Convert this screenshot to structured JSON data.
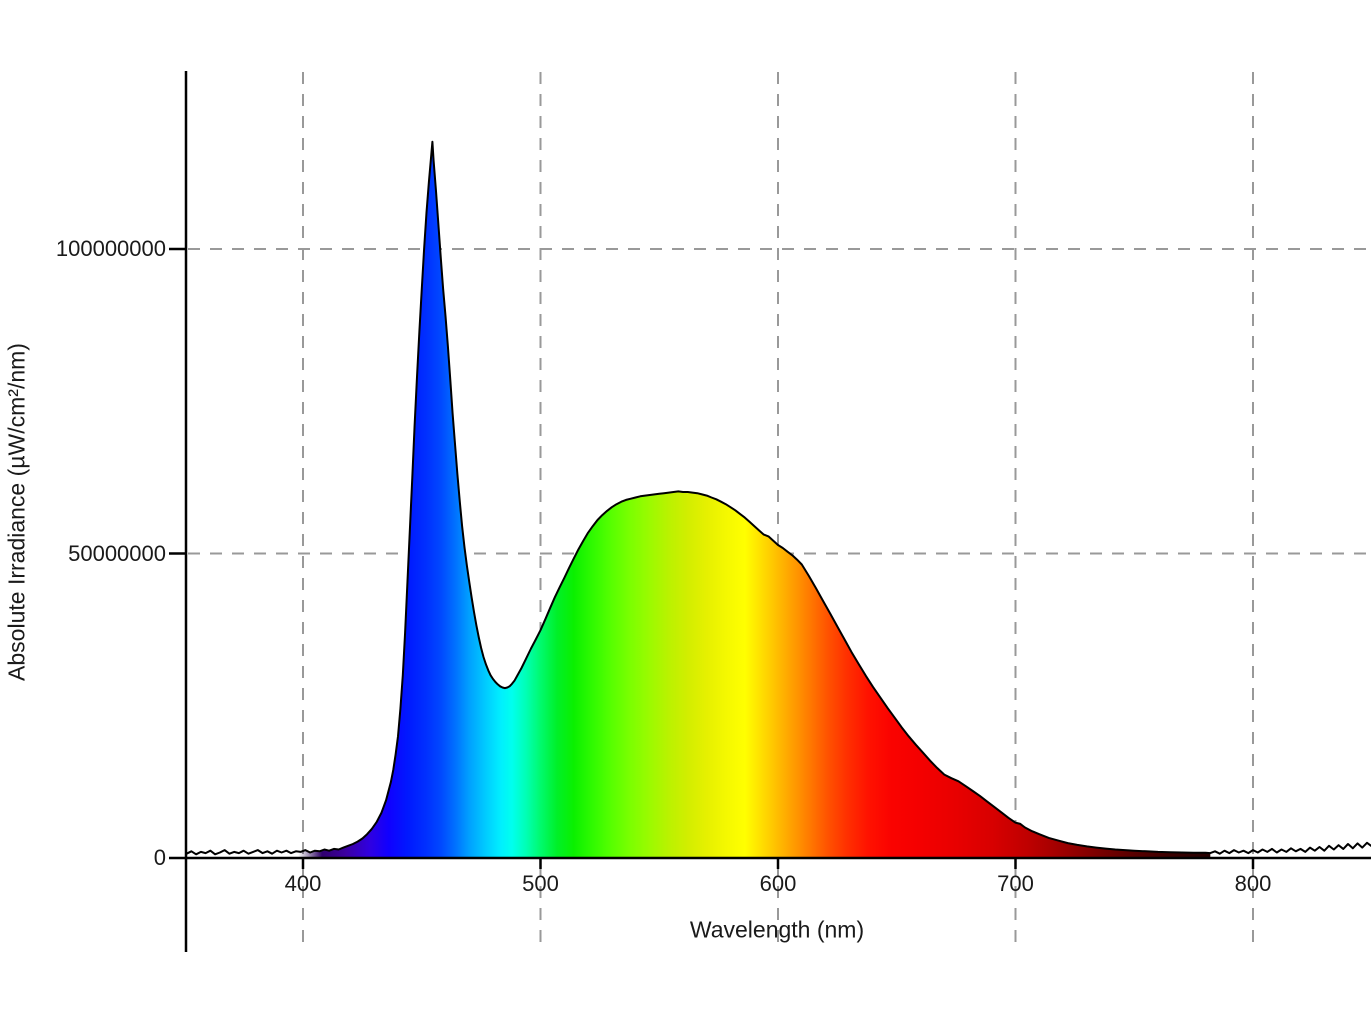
{
  "page": {
    "background": "#ffffff"
  },
  "chart_data": {
    "type": "area",
    "title": "",
    "xlabel": "Wavelength (nm)",
    "ylabel": "Absolute Irradiance (µW/cm²/nm)",
    "xlim": [
      351,
      850
    ],
    "ylim": [
      0,
      130000000
    ],
    "grid": {
      "style": "dashed",
      "color": "#999999",
      "on": true
    },
    "axis_color": "#000000",
    "label_color": "#1a1a1a",
    "legend": null,
    "x_ticks": [
      {
        "value": 400,
        "label": "400"
      },
      {
        "value": 500,
        "label": "500"
      },
      {
        "value": 600,
        "label": "600"
      },
      {
        "value": 700,
        "label": "700"
      },
      {
        "value": 800,
        "label": "800"
      }
    ],
    "y_ticks": [
      {
        "value": 0,
        "label": "0"
      },
      {
        "value": 50000000,
        "label": "50000000"
      },
      {
        "value": 100000000,
        "label": "100000000"
      }
    ],
    "features": {
      "blue_led_peak": {
        "nm": 454.5,
        "value": 117600000
      },
      "phosphor_peak": {
        "nm": 558,
        "value": 60200000
      },
      "valley": {
        "nm": 485,
        "value": 27900000
      }
    },
    "curve": {
      "stroke": "#000000",
      "stroke_width": 2,
      "fill": "spectral-gradient",
      "fill_end_nm": 782
    },
    "spectral_gradient": [
      {
        "nm": 351,
        "color": "#000000",
        "opacity": 0
      },
      {
        "nm": 398,
        "color": "#1c0040",
        "opacity": 0
      },
      {
        "nm": 408,
        "color": "#30006e",
        "opacity": 1
      },
      {
        "nm": 418,
        "color": "#3c00a0"
      },
      {
        "nm": 428,
        "color": "#3000e0"
      },
      {
        "nm": 436,
        "color": "#1000ff"
      },
      {
        "nm": 444,
        "color": "#0018ff"
      },
      {
        "nm": 452,
        "color": "#0030ff"
      },
      {
        "nm": 458,
        "color": "#0048ff"
      },
      {
        "nm": 464,
        "color": "#0070ff"
      },
      {
        "nm": 470,
        "color": "#00a0ff"
      },
      {
        "nm": 477,
        "color": "#00ccff"
      },
      {
        "nm": 483,
        "color": "#00eeff"
      },
      {
        "nm": 488,
        "color": "#00ffee"
      },
      {
        "nm": 494,
        "color": "#00ffb4"
      },
      {
        "nm": 500,
        "color": "#00fa6e"
      },
      {
        "nm": 507,
        "color": "#00f028"
      },
      {
        "nm": 514,
        "color": "#0af000"
      },
      {
        "nm": 522,
        "color": "#30fa00"
      },
      {
        "nm": 530,
        "color": "#58ff00"
      },
      {
        "nm": 538,
        "color": "#7cff00"
      },
      {
        "nm": 546,
        "color": "#9cfa00"
      },
      {
        "nm": 554,
        "color": "#baf200"
      },
      {
        "nm": 562,
        "color": "#d2ee00"
      },
      {
        "nm": 570,
        "color": "#e6f000"
      },
      {
        "nm": 578,
        "color": "#f4f800"
      },
      {
        "nm": 586,
        "color": "#ffff00"
      },
      {
        "nm": 593,
        "color": "#ffdf00"
      },
      {
        "nm": 600,
        "color": "#ffbc00"
      },
      {
        "nm": 607,
        "color": "#ff9a00"
      },
      {
        "nm": 614,
        "color": "#ff7600"
      },
      {
        "nm": 621,
        "color": "#ff5200"
      },
      {
        "nm": 629,
        "color": "#ff3000"
      },
      {
        "nm": 638,
        "color": "#ff1200"
      },
      {
        "nm": 648,
        "color": "#fa0200"
      },
      {
        "nm": 660,
        "color": "#f40000"
      },
      {
        "nm": 675,
        "color": "#e80000"
      },
      {
        "nm": 690,
        "color": "#d80000"
      },
      {
        "nm": 705,
        "color": "#bf0000"
      },
      {
        "nm": 720,
        "color": "#9d0000"
      },
      {
        "nm": 735,
        "color": "#7a0000"
      },
      {
        "nm": 750,
        "color": "#580000"
      },
      {
        "nm": 765,
        "color": "#3c0000"
      },
      {
        "nm": 782,
        "color": "#240000"
      }
    ],
    "value_multiplier": 1000000,
    "points": [
      [
        351,
        0.7
      ],
      [
        353,
        1.1
      ],
      [
        355,
        0.6
      ],
      [
        357,
        1.0
      ],
      [
        359,
        0.8
      ],
      [
        361,
        1.2
      ],
      [
        363,
        0.6
      ],
      [
        365,
        0.9
      ],
      [
        367,
        1.3
      ],
      [
        369,
        0.7
      ],
      [
        371,
        1.0
      ],
      [
        373,
        0.8
      ],
      [
        375,
        1.2
      ],
      [
        377,
        0.7
      ],
      [
        379,
        1.0
      ],
      [
        381,
        1.3
      ],
      [
        383,
        0.8
      ],
      [
        385,
        1.1
      ],
      [
        387,
        0.7
      ],
      [
        389,
        1.2
      ],
      [
        391,
        0.9
      ],
      [
        393,
        1.2
      ],
      [
        395,
        0.8
      ],
      [
        397,
        1.1
      ],
      [
        399,
        1.0
      ],
      [
        401,
        1.3
      ],
      [
        403,
        0.9
      ],
      [
        405,
        1.2
      ],
      [
        407,
        1.1
      ],
      [
        409,
        1.4
      ],
      [
        411,
        1.2
      ],
      [
        413,
        1.5
      ],
      [
        415,
        1.4
      ],
      [
        417,
        1.7
      ],
      [
        419,
        2.0
      ],
      [
        421,
        2.3
      ],
      [
        423,
        2.7
      ],
      [
        425,
        3.2
      ],
      [
        427,
        3.9
      ],
      [
        429,
        4.8
      ],
      [
        431,
        5.9
      ],
      [
        433,
        7.4
      ],
      [
        435,
        9.5
      ],
      [
        437,
        12.5
      ],
      [
        438,
        14.5
      ],
      [
        439,
        17
      ],
      [
        440,
        20
      ],
      [
        441,
        24.5
      ],
      [
        442,
        30
      ],
      [
        443,
        37
      ],
      [
        444,
        45.5
      ],
      [
        445,
        54
      ],
      [
        446,
        62.5
      ],
      [
        447,
        71
      ],
      [
        448,
        79
      ],
      [
        449,
        86.5
      ],
      [
        450,
        93.5
      ],
      [
        451,
        100
      ],
      [
        452,
        106
      ],
      [
        453,
        111
      ],
      [
        454,
        115.5
      ],
      [
        454.5,
        117.6
      ],
      [
        455,
        114.5
      ],
      [
        456,
        109.5
      ],
      [
        457,
        104
      ],
      [
        458,
        98.5
      ],
      [
        459,
        93.5
      ],
      [
        460,
        89
      ],
      [
        461,
        84
      ],
      [
        462,
        78.5
      ],
      [
        463,
        73
      ],
      [
        464,
        68
      ],
      [
        465,
        63
      ],
      [
        466,
        58.5
      ],
      [
        467,
        54.5
      ],
      [
        468,
        51
      ],
      [
        469,
        48
      ],
      [
        470,
        45.3
      ],
      [
        471,
        42.8
      ],
      [
        472,
        40.4
      ],
      [
        473,
        38.2
      ],
      [
        474,
        36.2
      ],
      [
        475,
        34.5
      ],
      [
        476,
        33.0
      ],
      [
        477,
        31.8
      ],
      [
        478,
        30.8
      ],
      [
        479,
        30.0
      ],
      [
        480,
        29.4
      ],
      [
        481,
        28.9
      ],
      [
        482,
        28.5
      ],
      [
        483,
        28.2
      ],
      [
        484,
        28.0
      ],
      [
        485,
        27.9
      ],
      [
        486,
        28.0
      ],
      [
        487,
        28.2
      ],
      [
        488,
        28.6
      ],
      [
        489,
        29.1
      ],
      [
        490,
        29.8
      ],
      [
        492,
        31.2
      ],
      [
        494,
        32.8
      ],
      [
        496,
        34.4
      ],
      [
        498,
        35.9
      ],
      [
        500,
        37.4
      ],
      [
        502,
        39.2
      ],
      [
        504,
        41.0
      ],
      [
        506,
        42.8
      ],
      [
        508,
        44.4
      ],
      [
        510,
        46.0
      ],
      [
        512,
        47.6
      ],
      [
        514,
        49.2
      ],
      [
        516,
        50.7
      ],
      [
        518,
        52.1
      ],
      [
        520,
        53.4
      ],
      [
        522,
        54.5
      ],
      [
        524,
        55.5
      ],
      [
        526,
        56.3
      ],
      [
        528,
        57.0
      ],
      [
        530,
        57.6
      ],
      [
        532,
        58.1
      ],
      [
        534,
        58.5
      ],
      [
        536,
        58.8
      ],
      [
        538,
        59.0
      ],
      [
        540,
        59.2
      ],
      [
        542,
        59.4
      ],
      [
        544,
        59.5
      ],
      [
        546,
        59.6
      ],
      [
        548,
        59.7
      ],
      [
        550,
        59.8
      ],
      [
        552,
        59.9
      ],
      [
        554,
        60.0
      ],
      [
        556,
        60.1
      ],
      [
        558,
        60.2
      ],
      [
        560,
        60.1
      ],
      [
        562,
        60.1
      ],
      [
        564,
        60.0
      ],
      [
        566,
        59.9
      ],
      [
        568,
        59.7
      ],
      [
        570,
        59.5
      ],
      [
        572,
        59.2
      ],
      [
        574,
        58.9
      ],
      [
        576,
        58.5
      ],
      [
        578,
        58.1
      ],
      [
        580,
        57.6
      ],
      [
        582,
        57.1
      ],
      [
        584,
        56.5
      ],
      [
        586,
        55.9
      ],
      [
        588,
        55.2
      ],
      [
        590,
        54.5
      ],
      [
        592,
        53.8
      ],
      [
        594,
        53.1
      ],
      [
        596,
        52.8
      ],
      [
        598,
        52.1
      ],
      [
        600,
        51.4
      ],
      [
        602,
        50.9
      ],
      [
        604,
        50.3
      ],
      [
        606,
        49.7
      ],
      [
        608,
        49.0
      ],
      [
        610,
        48.2
      ],
      [
        613,
        46.3
      ],
      [
        616,
        44.3
      ],
      [
        619,
        42.2
      ],
      [
        622,
        40.1
      ],
      [
        625,
        38.0
      ],
      [
        628,
        35.9
      ],
      [
        631,
        33.8
      ],
      [
        634,
        31.8
      ],
      [
        637,
        29.9
      ],
      [
        640,
        28.1
      ],
      [
        643,
        26.4
      ],
      [
        646,
        24.7
      ],
      [
        649,
        23.1
      ],
      [
        652,
        21.5
      ],
      [
        655,
        20.0
      ],
      [
        658,
        18.6
      ],
      [
        661,
        17.3
      ],
      [
        664,
        16.0
      ],
      [
        667,
        14.8
      ],
      [
        670,
        13.7
      ],
      [
        673,
        13.1
      ],
      [
        676,
        12.6
      ],
      [
        679,
        11.8
      ],
      [
        682,
        11.0
      ],
      [
        685,
        10.2
      ],
      [
        688,
        9.3
      ],
      [
        691,
        8.4
      ],
      [
        694,
        7.5
      ],
      [
        697,
        6.6
      ],
      [
        700,
        5.8
      ],
      [
        702,
        5.6
      ],
      [
        704,
        5.0
      ],
      [
        707,
        4.4
      ],
      [
        710,
        3.9
      ],
      [
        714,
        3.3
      ],
      [
        718,
        2.85
      ],
      [
        722,
        2.45
      ],
      [
        726,
        2.15
      ],
      [
        730,
        1.9
      ],
      [
        734,
        1.7
      ],
      [
        738,
        1.55
      ],
      [
        742,
        1.4
      ],
      [
        746,
        1.3
      ],
      [
        750,
        1.2
      ],
      [
        755,
        1.1
      ],
      [
        760,
        1.0
      ],
      [
        765,
        0.95
      ],
      [
        770,
        0.9
      ],
      [
        775,
        0.87
      ],
      [
        780,
        0.85
      ],
      [
        782,
        0.8
      ],
      [
        784,
        1.1
      ],
      [
        786,
        0.7
      ],
      [
        788,
        1.2
      ],
      [
        790,
        0.8
      ],
      [
        792,
        1.3
      ],
      [
        794,
        0.9
      ],
      [
        796,
        1.2
      ],
      [
        798,
        0.8
      ],
      [
        800,
        1.3
      ],
      [
        802,
        0.9
      ],
      [
        804,
        1.4
      ],
      [
        806,
        1.0
      ],
      [
        808,
        1.5
      ],
      [
        810,
        0.9
      ],
      [
        812,
        1.4
      ],
      [
        814,
        1.0
      ],
      [
        816,
        1.6
      ],
      [
        818,
        1.1
      ],
      [
        820,
        1.5
      ],
      [
        822,
        1.0
      ],
      [
        824,
        1.7
      ],
      [
        826,
        1.2
      ],
      [
        828,
        1.8
      ],
      [
        830,
        1.2
      ],
      [
        832,
        2.0
      ],
      [
        834,
        1.4
      ],
      [
        836,
        2.1
      ],
      [
        838,
        1.5
      ],
      [
        840,
        2.3
      ],
      [
        842,
        1.6
      ],
      [
        844,
        2.4
      ],
      [
        846,
        1.7
      ],
      [
        848,
        2.5
      ],
      [
        850,
        1.9
      ]
    ]
  }
}
